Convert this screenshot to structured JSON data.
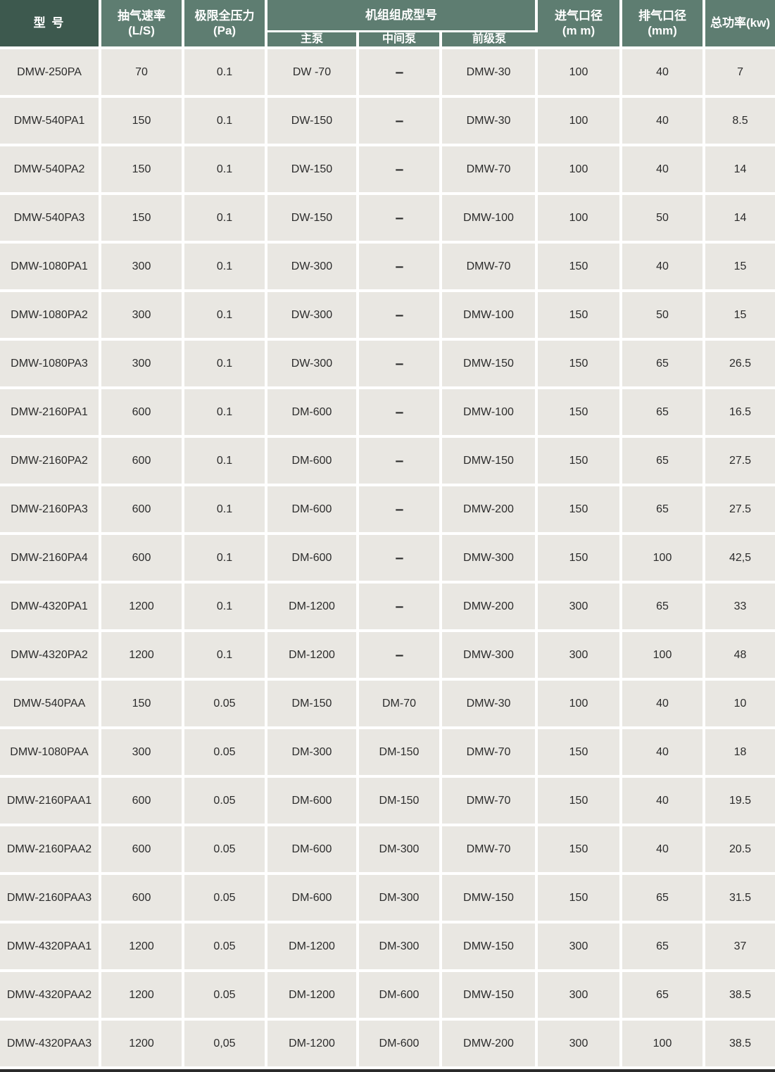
{
  "colors": {
    "header_dark": "#3d594e",
    "header_sage": "#5e7d71",
    "cell_bg": "#e9e7e2",
    "gap": "#ffffff",
    "text_dark": "#2c2c2c",
    "header_text": "#ffffff",
    "bottom_bar": "#2b2b2b"
  },
  "chart_data": {
    "type": "table",
    "title": "",
    "group_label": "机组组成型号",
    "group_span_columns": [
      3,
      4,
      5
    ],
    "columns": [
      "型 号",
      "抽气速率\n(L/S)",
      "极限全压力\n(Pa)",
      "主泵",
      "中间泵",
      "前级泵",
      "进气口径\n(m m)",
      "排气口径\n(mm)",
      "总功率(kw)"
    ],
    "rows": [
      [
        "DMW-250PA",
        "70",
        "0.1",
        "DW -70",
        "–",
        "DMW-30",
        "100",
        "40",
        "7"
      ],
      [
        "DMW-540PA1",
        "150",
        "0.1",
        "DW-150",
        "–",
        "DMW-30",
        "100",
        "40",
        "8.5"
      ],
      [
        "DMW-540PA2",
        "150",
        "0.1",
        "DW-150",
        "–",
        "DMW-70",
        "100",
        "40",
        "14"
      ],
      [
        "DMW-540PA3",
        "150",
        "0.1",
        "DW-150",
        "–",
        "DMW-100",
        "100",
        "50",
        "14"
      ],
      [
        "DMW-1080PA1",
        "300",
        "0.1",
        "DW-300",
        "–",
        "DMW-70",
        "150",
        "40",
        "15"
      ],
      [
        "DMW-1080PA2",
        "300",
        "0.1",
        "DW-300",
        "–",
        "DMW-100",
        "150",
        "50",
        "15"
      ],
      [
        "DMW-1080PA3",
        "300",
        "0.1",
        "DW-300",
        "–",
        "DMW-150",
        "150",
        "65",
        "26.5"
      ],
      [
        "DMW-2160PA1",
        "600",
        "0.1",
        "DM-600",
        "–",
        "DMW-100",
        "150",
        "65",
        "16.5"
      ],
      [
        "DMW-2160PA2",
        "600",
        "0.1",
        "DM-600",
        "–",
        "DMW-150",
        "150",
        "65",
        "27.5"
      ],
      [
        "DMW-2160PA3",
        "600",
        "0.1",
        "DM-600",
        "–",
        "DMW-200",
        "150",
        "65",
        "27.5"
      ],
      [
        "DMW-2160PA4",
        "600",
        "0.1",
        "DM-600",
        "–",
        "DMW-300",
        "150",
        "100",
        "42,5"
      ],
      [
        "DMW-4320PA1",
        "1200",
        "0.1",
        "DM-1200",
        "–",
        "DMW-200",
        "300",
        "65",
        "33"
      ],
      [
        "DMW-4320PA2",
        "1200",
        "0.1",
        "DM-1200",
        "–",
        "DMW-300",
        "300",
        "100",
        "48"
      ],
      [
        "DMW-540PAA",
        "150",
        "0.05",
        "DM-150",
        "DM-70",
        "DMW-30",
        "100",
        "40",
        "10"
      ],
      [
        "DMW-1080PAA",
        "300",
        "0.05",
        "DM-300",
        "DM-150",
        "DMW-70",
        "150",
        "40",
        "18"
      ],
      [
        "DMW-2160PAA1",
        "600",
        "0.05",
        "DM-600",
        "DM-150",
        "DMW-70",
        "150",
        "40",
        "19.5"
      ],
      [
        "DMW-2160PAA2",
        "600",
        "0.05",
        "DM-600",
        "DM-300",
        "DMW-70",
        "150",
        "40",
        "20.5"
      ],
      [
        "DMW-2160PAA3",
        "600",
        "0.05",
        "DM-600",
        "DM-300",
        "DMW-150",
        "150",
        "65",
        "31.5"
      ],
      [
        "DMW-4320PAA1",
        "1200",
        "0.05",
        "DM-1200",
        "DM-300",
        "DMW-150",
        "300",
        "65",
        "37"
      ],
      [
        "DMW-4320PAA2",
        "1200",
        "0.05",
        "DM-1200",
        "DM-600",
        "DMW-150",
        "300",
        "65",
        "38.5"
      ],
      [
        "DMW-4320PAA3",
        "1200",
        "0,05",
        "DM-1200",
        "DM-600",
        "DMW-200",
        "300",
        "100",
        "38.5"
      ]
    ]
  }
}
